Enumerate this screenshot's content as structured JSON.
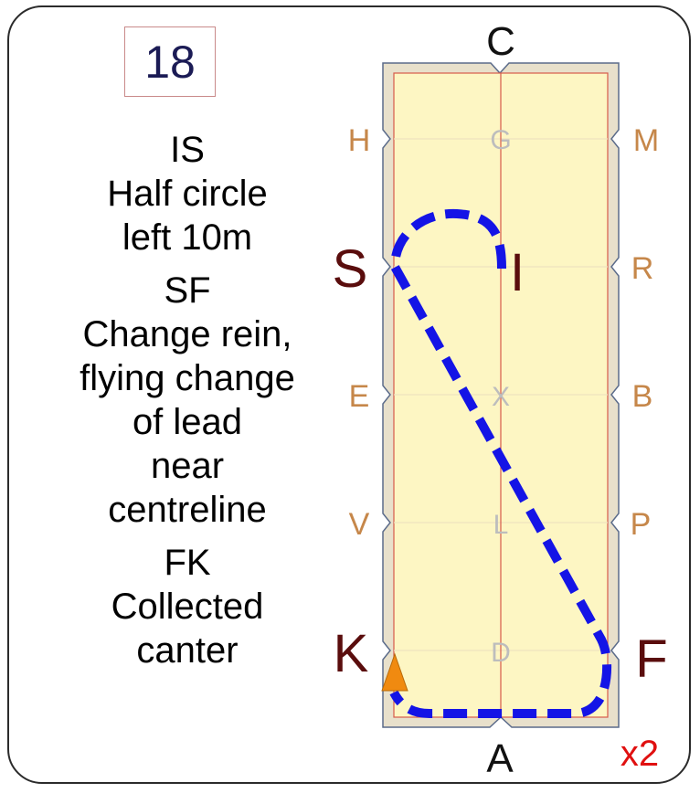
{
  "movement_number": "18",
  "instructions": [
    {
      "lines": [
        "IS",
        "Half circle",
        "left 10m"
      ]
    },
    {
      "lines": [
        "SF",
        "Change rein,",
        "flying change",
        "of lead",
        "near",
        "centreline"
      ]
    },
    {
      "lines": [
        "FK",
        "Collected",
        "canter"
      ]
    }
  ],
  "arena": {
    "top_letter": "C",
    "bottom_letter": "A",
    "left_markers": [
      "H",
      "S",
      "E",
      "V",
      "K"
    ],
    "right_markers": [
      "M",
      "R",
      "B",
      "P",
      "F"
    ],
    "center_markers": [
      "G",
      "I",
      "X",
      "L",
      "D"
    ],
    "highlighted": [
      "S",
      "I",
      "K",
      "F"
    ],
    "repeat_label": "x2"
  },
  "colors": {
    "arena_fill": "#fdf6c3",
    "arena_border": "#d8cfb3",
    "marker_letter": "#c6874a",
    "center_letter": "#bdbdbd",
    "highlight_letter": "#5a0d0d",
    "path": "#1414e6",
    "start_triangle": "#f08a10",
    "repeat": "#e01010"
  }
}
